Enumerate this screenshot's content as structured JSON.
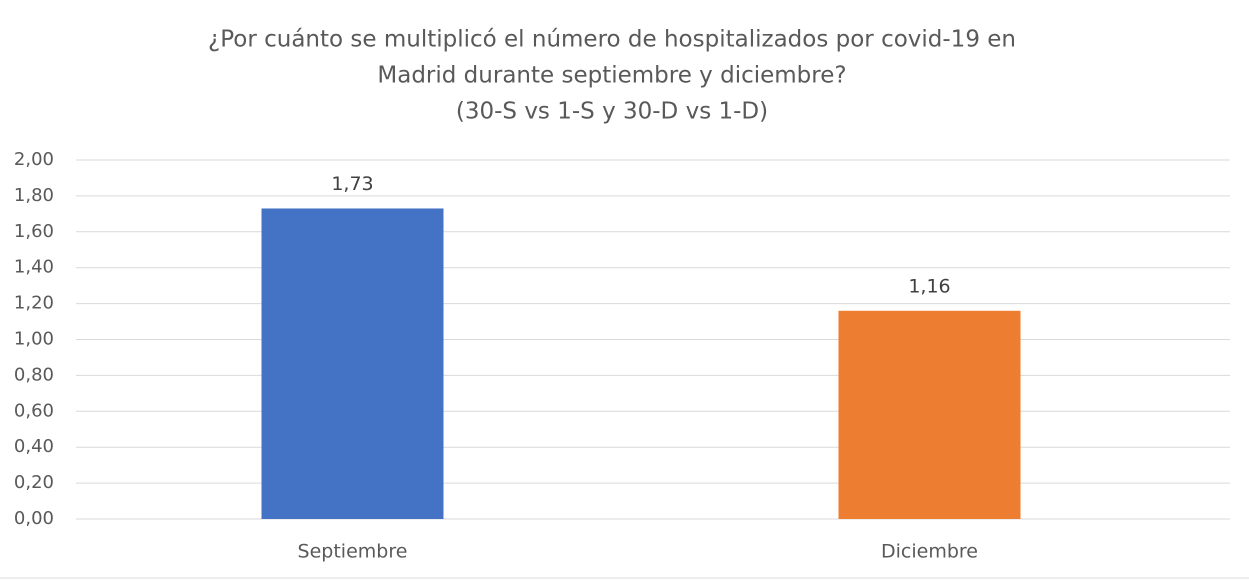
{
  "chart_data": {
    "type": "bar",
    "title": [
      "¿Por cuánto se multiplicó el número de hospitalizados por covid-19 en",
      "Madrid durante septiembre y diciembre?",
      "(30-S vs 1-S y 30-D vs 1-D)"
    ],
    "categories": [
      "Septiembre",
      "Diciembre"
    ],
    "values": [
      1.73,
      1.16
    ],
    "value_labels": [
      "1,73",
      "1,16"
    ],
    "colors": [
      "#4472c4",
      "#ed7d31"
    ],
    "ylim": [
      0,
      2
    ],
    "yticks": [
      {
        "value": 0,
        "label": "0,00"
      },
      {
        "value": 0.2,
        "label": "0,20"
      },
      {
        "value": 0.4,
        "label": "0,40"
      },
      {
        "value": 0.6,
        "label": "0,60"
      },
      {
        "value": 0.8,
        "label": "0,80"
      },
      {
        "value": 1,
        "label": "1,00"
      },
      {
        "value": 1.2,
        "label": "1,20"
      },
      {
        "value": 1.4,
        "label": "1,40"
      },
      {
        "value": 1.6,
        "label": "1,60"
      },
      {
        "value": 1.8,
        "label": "1,80"
      },
      {
        "value": 2,
        "label": "2,00"
      }
    ],
    "grid": true
  }
}
